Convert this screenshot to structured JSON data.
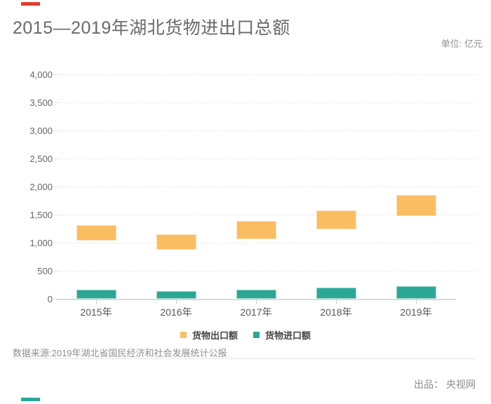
{
  "page": {
    "title": "2015—2019年湖北货物进出口总额",
    "unit_label": "单位: 亿元",
    "accent_red": "#e23c2f",
    "accent_teal": "#2ba796"
  },
  "chart_data": {
    "type": "bar",
    "title": "2015—2019年湖北货物进出口总额",
    "unit": "亿元",
    "categories": [
      "2015年",
      "2016年",
      "2017年",
      "2018年",
      "2019年"
    ],
    "series": [
      {
        "name": "货物出口额",
        "color": "#fbbd62",
        "style": "floating-range",
        "ranges": [
          [
            1040,
            1310
          ],
          [
            875,
            1150
          ],
          [
            1065,
            1390
          ],
          [
            1240,
            1575
          ],
          [
            1480,
            1850
          ]
        ]
      },
      {
        "name": "货物进口额",
        "color": "#2ba796",
        "style": "column-from-zero",
        "values": [
          160,
          140,
          165,
          205,
          230
        ]
      }
    ],
    "ylim": [
      0,
      4000
    ],
    "yticks": [
      0,
      500,
      1000,
      1500,
      2000,
      2500,
      3000,
      3500,
      4000
    ],
    "grid": "horizontal-dashed",
    "legend_position": "bottom-center"
  },
  "footer": {
    "source": "数据来源:2019年湖北省国民经济和社会发展统计公报",
    "producer": "出品： 央视网"
  }
}
